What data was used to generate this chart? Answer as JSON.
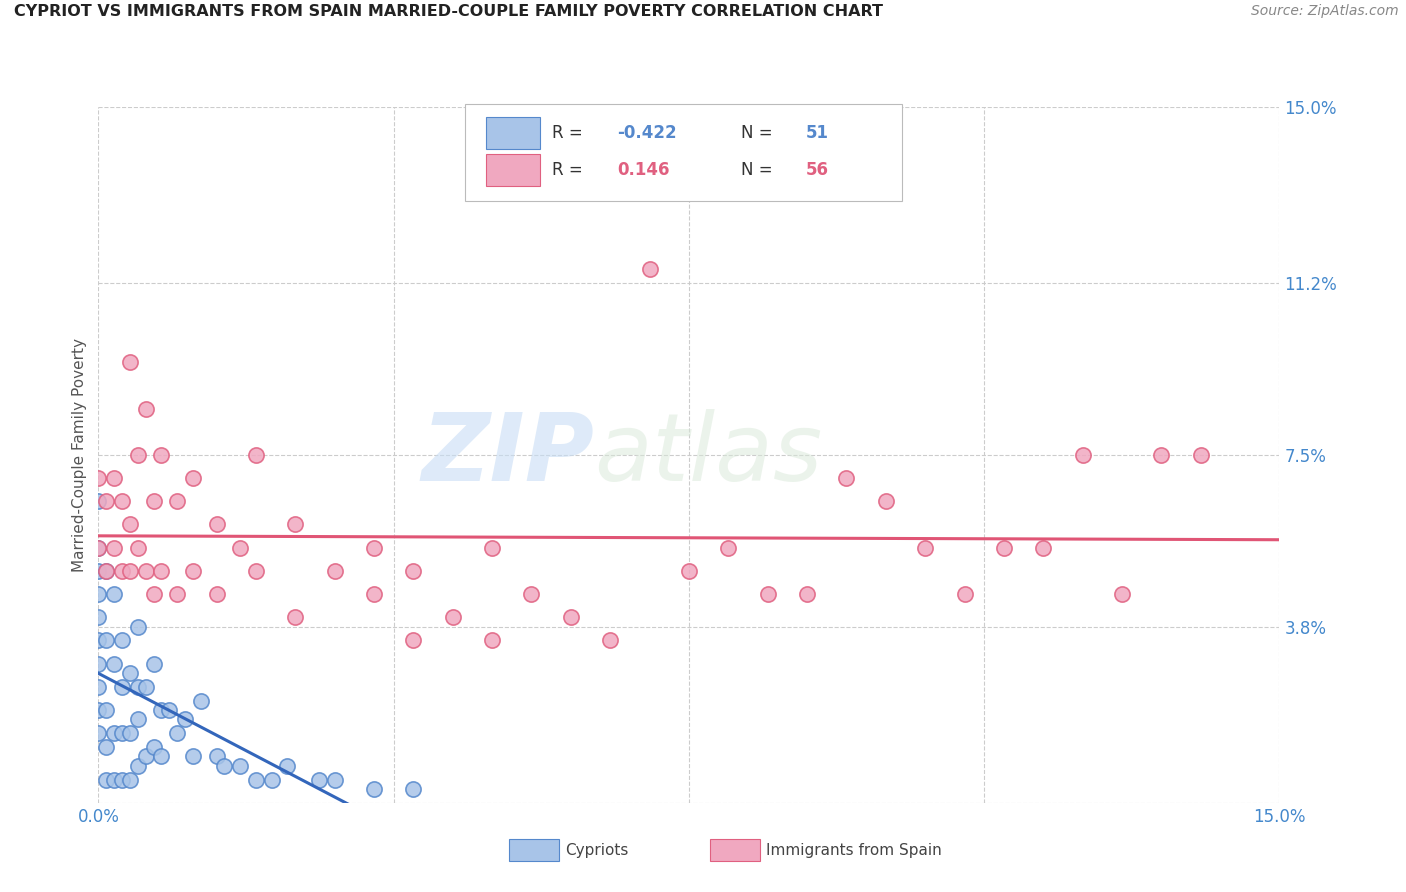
{
  "title": "CYPRIOT VS IMMIGRANTS FROM SPAIN MARRIED-COUPLE FAMILY POVERTY CORRELATION CHART",
  "source": "Source: ZipAtlas.com",
  "ylabel": "Married-Couple Family Poverty",
  "xlim": [
    0,
    15
  ],
  "ylim": [
    0,
    15
  ],
  "yticks": [
    0,
    3.8,
    7.5,
    11.2,
    15.0
  ],
  "ytick_labels": [
    "",
    "3.8%",
    "7.5%",
    "11.2%",
    "15.0%"
  ],
  "xtick_vals": [
    0,
    3.75,
    7.5,
    11.25,
    15.0
  ],
  "xtick_labels": [
    "0.0%",
    "",
    "",
    "",
    "15.0%"
  ],
  "watermark_zip": "ZIP",
  "watermark_atlas": "atlas",
  "cypriot_color": "#a8c4e8",
  "spain_color": "#f0a8c0",
  "cypriot_edge_color": "#5588cc",
  "spain_edge_color": "#e06080",
  "cypriot_line_color": "#3366bb",
  "spain_line_color": "#e05575",
  "legend_label_cypriot": "Cypriots",
  "legend_label_spain": "Immigrants from Spain",
  "cypriot_R": "-0.422",
  "cypriot_N": "51",
  "spain_R": "0.146",
  "spain_N": "56",
  "cypriot_x": [
    0.0,
    0.0,
    0.0,
    0.0,
    0.0,
    0.0,
    0.0,
    0.0,
    0.0,
    0.0,
    0.1,
    0.1,
    0.1,
    0.1,
    0.1,
    0.2,
    0.2,
    0.2,
    0.2,
    0.3,
    0.3,
    0.3,
    0.3,
    0.4,
    0.4,
    0.4,
    0.5,
    0.5,
    0.5,
    0.5,
    0.6,
    0.6,
    0.7,
    0.7,
    0.8,
    0.8,
    0.9,
    1.0,
    1.1,
    1.2,
    1.3,
    1.5,
    1.6,
    1.8,
    2.0,
    2.2,
    2.4,
    2.8,
    3.0,
    3.5,
    4.0
  ],
  "cypriot_y": [
    1.5,
    2.0,
    2.5,
    3.0,
    3.5,
    4.0,
    4.5,
    5.0,
    5.5,
    6.5,
    0.5,
    1.2,
    2.0,
    3.5,
    5.0,
    0.5,
    1.5,
    3.0,
    4.5,
    0.5,
    1.5,
    2.5,
    3.5,
    0.5,
    1.5,
    2.8,
    0.8,
    1.8,
    2.5,
    3.8,
    1.0,
    2.5,
    1.2,
    3.0,
    1.0,
    2.0,
    2.0,
    1.5,
    1.8,
    1.0,
    2.2,
    1.0,
    0.8,
    0.8,
    0.5,
    0.5,
    0.8,
    0.5,
    0.5,
    0.3,
    0.3
  ],
  "spain_x": [
    0.0,
    0.0,
    0.1,
    0.1,
    0.2,
    0.2,
    0.3,
    0.3,
    0.4,
    0.4,
    0.4,
    0.5,
    0.5,
    0.6,
    0.6,
    0.7,
    0.7,
    0.8,
    0.8,
    1.0,
    1.0,
    1.2,
    1.2,
    1.5,
    1.5,
    1.8,
    2.0,
    2.0,
    2.5,
    2.5,
    3.0,
    3.5,
    3.5,
    4.0,
    4.0,
    4.5,
    5.0,
    5.0,
    5.5,
    6.0,
    6.5,
    7.0,
    7.5,
    8.0,
    8.5,
    9.0,
    9.5,
    10.0,
    10.5,
    11.0,
    11.5,
    12.0,
    12.5,
    13.0,
    13.5,
    14.0
  ],
  "spain_y": [
    5.5,
    7.0,
    5.0,
    6.5,
    5.5,
    7.0,
    5.0,
    6.5,
    5.0,
    6.0,
    9.5,
    5.5,
    7.5,
    5.0,
    8.5,
    4.5,
    6.5,
    5.0,
    7.5,
    4.5,
    6.5,
    5.0,
    7.0,
    4.5,
    6.0,
    5.5,
    5.0,
    7.5,
    4.0,
    6.0,
    5.0,
    4.5,
    5.5,
    3.5,
    5.0,
    4.0,
    5.5,
    3.5,
    4.5,
    4.0,
    3.5,
    11.5,
    5.0,
    5.5,
    4.5,
    4.5,
    7.0,
    6.5,
    5.5,
    4.5,
    5.5,
    5.5,
    7.5,
    4.5,
    7.5,
    7.5
  ]
}
